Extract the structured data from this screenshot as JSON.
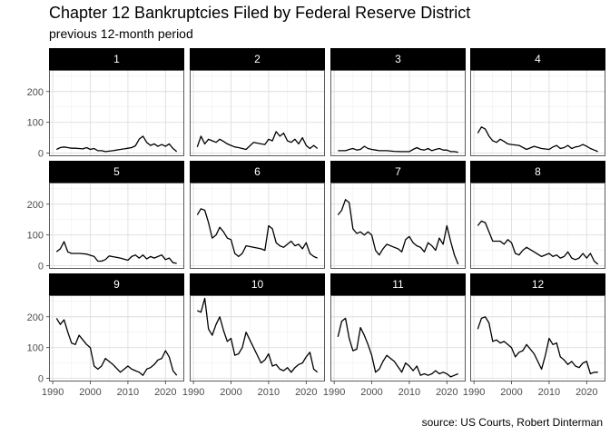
{
  "title": "Chapter 12 Bankruptcies Filed by Federal Reserve District",
  "subtitle": "previous 12-month period",
  "caption": "source: US Courts, Robert Dinterman",
  "chart_data": {
    "type": "line",
    "facet_by": "Federal Reserve District",
    "x_ticks": [
      1990,
      2000,
      2010,
      2020
    ],
    "y_ticks": [
      0,
      100,
      200
    ],
    "xlim": [
      1989,
      2025
    ],
    "ylim": [
      -10,
      270
    ],
    "grid": true,
    "layout": "3 rows x 4 columns, panels ordered 1-12",
    "series": [
      {
        "name": "1",
        "x": [
          1991,
          1992,
          1993,
          1994,
          1995,
          1996,
          1997,
          1998,
          1999,
          2000,
          2001,
          2002,
          2003,
          2004,
          2006,
          2008,
          2009,
          2010,
          2011,
          2012,
          2013,
          2014,
          2015,
          2016,
          2017,
          2018,
          2019,
          2020,
          2021,
          2022,
          2023
        ],
        "values": [
          12,
          18,
          20,
          18,
          16,
          16,
          15,
          14,
          18,
          12,
          15,
          8,
          8,
          5,
          8,
          12,
          14,
          16,
          18,
          24,
          45,
          55,
          35,
          25,
          30,
          22,
          28,
          22,
          30,
          15,
          5
        ]
      },
      {
        "name": "2",
        "x": [
          1991,
          1992,
          1993,
          1994,
          1995,
          1996,
          1997,
          1998,
          1999,
          2000,
          2001,
          2002,
          2003,
          2004,
          2006,
          2008,
          2009,
          2010,
          2011,
          2012,
          2013,
          2014,
          2015,
          2016,
          2017,
          2018,
          2019,
          2020,
          2021,
          2022,
          2023
        ],
        "values": [
          20,
          55,
          30,
          45,
          40,
          35,
          45,
          38,
          30,
          25,
          20,
          18,
          15,
          12,
          35,
          30,
          28,
          45,
          40,
          70,
          55,
          65,
          40,
          35,
          45,
          30,
          50,
          25,
          15,
          25,
          15
        ]
      },
      {
        "name": "3",
        "x": [
          1991,
          1993,
          1994,
          1995,
          1996,
          1997,
          1998,
          1999,
          2000,
          2001,
          2002,
          2004,
          2006,
          2008,
          2010,
          2011,
          2012,
          2013,
          2014,
          2015,
          2016,
          2017,
          2018,
          2019,
          2020,
          2021,
          2022,
          2023
        ],
        "values": [
          8,
          8,
          12,
          15,
          10,
          12,
          22,
          15,
          12,
          10,
          8,
          8,
          6,
          5,
          5,
          12,
          18,
          12,
          10,
          15,
          8,
          12,
          15,
          10,
          10,
          5,
          5,
          3
        ]
      },
      {
        "name": "4",
        "x": [
          1991,
          1992,
          1993,
          1994,
          1995,
          1996,
          1997,
          1998,
          1999,
          2000,
          2002,
          2004,
          2006,
          2008,
          2010,
          2011,
          2012,
          2013,
          2014,
          2015,
          2016,
          2017,
          2018,
          2019,
          2020,
          2021,
          2022,
          2023
        ],
        "values": [
          65,
          85,
          78,
          55,
          40,
          35,
          45,
          38,
          30,
          28,
          25,
          12,
          22,
          15,
          12,
          20,
          25,
          15,
          18,
          25,
          15,
          20,
          22,
          28,
          22,
          15,
          10,
          5
        ]
      },
      {
        "name": "5",
        "x": [
          1991,
          1992,
          1993,
          1994,
          1995,
          1997,
          1999,
          2001,
          2002,
          2003,
          2004,
          2005,
          2008,
          2010,
          2011,
          2012,
          2013,
          2014,
          2015,
          2016,
          2017,
          2018,
          2019,
          2020,
          2021,
          2022,
          2023
        ],
        "values": [
          45,
          55,
          78,
          45,
          40,
          40,
          38,
          30,
          15,
          15,
          20,
          32,
          25,
          18,
          30,
          35,
          25,
          35,
          22,
          30,
          25,
          30,
          35,
          20,
          25,
          10,
          8
        ]
      },
      {
        "name": "6",
        "x": [
          1991,
          1992,
          1993,
          1994,
          1995,
          1996,
          1997,
          1998,
          1999,
          2000,
          2001,
          2002,
          2003,
          2004,
          2008,
          2009,
          2010,
          2011,
          2012,
          2013,
          2014,
          2015,
          2016,
          2017,
          2018,
          2019,
          2020,
          2021,
          2022,
          2023
        ],
        "values": [
          165,
          185,
          180,
          140,
          90,
          100,
          125,
          110,
          90,
          85,
          40,
          30,
          40,
          65,
          55,
          50,
          130,
          120,
          75,
          65,
          60,
          70,
          80,
          65,
          70,
          55,
          75,
          40,
          30,
          25
        ]
      },
      {
        "name": "7",
        "x": [
          1991,
          1992,
          1993,
          1994,
          1995,
          1996,
          1997,
          1998,
          1999,
          2000,
          2001,
          2002,
          2003,
          2004,
          2006,
          2007,
          2008,
          2009,
          2010,
          2011,
          2012,
          2013,
          2014,
          2015,
          2016,
          2017,
          2018,
          2019,
          2020,
          2021,
          2022,
          2023
        ],
        "values": [
          165,
          180,
          215,
          205,
          120,
          105,
          110,
          100,
          110,
          100,
          50,
          35,
          55,
          70,
          60,
          55,
          45,
          85,
          95,
          75,
          65,
          60,
          45,
          75,
          65,
          50,
          90,
          70,
          130,
          80,
          35,
          5
        ]
      },
      {
        "name": "8",
        "x": [
          1991,
          1992,
          1993,
          1994,
          1995,
          1996,
          1997,
          1998,
          1999,
          2000,
          2001,
          2002,
          2003,
          2004,
          2006,
          2008,
          2010,
          2011,
          2012,
          2013,
          2014,
          2015,
          2016,
          2017,
          2018,
          2019,
          2020,
          2021,
          2022,
          2023
        ],
        "values": [
          130,
          145,
          140,
          110,
          80,
          80,
          80,
          70,
          85,
          75,
          40,
          35,
          50,
          60,
          45,
          30,
          40,
          30,
          35,
          25,
          30,
          45,
          25,
          20,
          25,
          40,
          25,
          40,
          15,
          5
        ]
      },
      {
        "name": "9",
        "x": [
          1991,
          1992,
          1993,
          1994,
          1995,
          1996,
          1997,
          1998,
          1999,
          2000,
          2001,
          2002,
          2003,
          2004,
          2006,
          2008,
          2009,
          2010,
          2011,
          2012,
          2013,
          2014,
          2015,
          2016,
          2017,
          2018,
          2019,
          2020,
          2021,
          2022,
          2023
        ],
        "values": [
          195,
          175,
          190,
          150,
          115,
          110,
          140,
          125,
          110,
          100,
          40,
          30,
          40,
          65,
          45,
          20,
          30,
          40,
          30,
          25,
          20,
          10,
          30,
          35,
          45,
          60,
          65,
          90,
          70,
          25,
          10
        ]
      },
      {
        "name": "10",
        "x": [
          1991,
          1992,
          1993,
          1994,
          1995,
          1996,
          1997,
          1998,
          1999,
          2000,
          2001,
          2002,
          2003,
          2004,
          2008,
          2009,
          2010,
          2011,
          2012,
          2013,
          2014,
          2015,
          2016,
          2017,
          2018,
          2019,
          2020,
          2021,
          2022,
          2023
        ],
        "values": [
          220,
          215,
          260,
          160,
          140,
          175,
          200,
          155,
          120,
          130,
          75,
          80,
          100,
          150,
          50,
          60,
          80,
          40,
          45,
          30,
          25,
          35,
          20,
          35,
          45,
          50,
          70,
          85,
          30,
          20
        ]
      },
      {
        "name": "11",
        "x": [
          1991,
          1992,
          1993,
          1994,
          1995,
          1996,
          1997,
          1998,
          1999,
          2000,
          2001,
          2002,
          2003,
          2004,
          2006,
          2008,
          2009,
          2010,
          2011,
          2012,
          2013,
          2014,
          2015,
          2016,
          2017,
          2018,
          2019,
          2020,
          2021,
          2022,
          2023
        ],
        "values": [
          135,
          185,
          195,
          130,
          90,
          95,
          165,
          140,
          110,
          75,
          20,
          30,
          55,
          75,
          55,
          20,
          50,
          40,
          25,
          40,
          10,
          15,
          10,
          15,
          25,
          15,
          20,
          15,
          5,
          10,
          15
        ]
      },
      {
        "name": "12",
        "x": [
          1991,
          1992,
          1993,
          1994,
          1995,
          1996,
          1997,
          1998,
          1999,
          2000,
          2001,
          2002,
          2003,
          2004,
          2006,
          2008,
          2009,
          2010,
          2011,
          2012,
          2013,
          2014,
          2015,
          2016,
          2017,
          2018,
          2019,
          2020,
          2021,
          2022,
          2023
        ],
        "values": [
          160,
          195,
          200,
          180,
          120,
          125,
          115,
          120,
          110,
          100,
          70,
          85,
          90,
          110,
          80,
          30,
          75,
          130,
          110,
          115,
          70,
          60,
          45,
          55,
          40,
          35,
          50,
          55,
          15,
          20,
          20
        ]
      }
    ]
  }
}
